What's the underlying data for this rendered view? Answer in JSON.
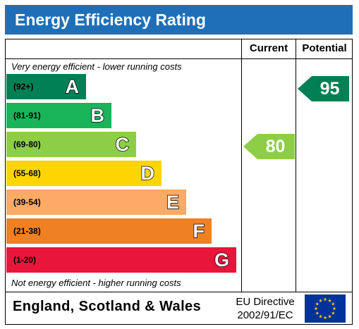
{
  "header": {
    "title": "Energy Efficiency Rating"
  },
  "columns": {
    "current": "Current",
    "potential": "Potential"
  },
  "notes": {
    "top": "Very energy efficient - lower running costs",
    "bottom": "Not energy efficient - higher running costs"
  },
  "chart_data": {
    "type": "bar",
    "title": "Energy Efficiency Rating",
    "categories": [
      "A",
      "B",
      "C",
      "D",
      "E",
      "F",
      "G"
    ],
    "bands": [
      {
        "letter": "A",
        "range": "(92+)",
        "color": "#008054"
      },
      {
        "letter": "B",
        "range": "(81-91)",
        "color": "#19b459"
      },
      {
        "letter": "C",
        "range": "(69-80)",
        "color": "#8dce46"
      },
      {
        "letter": "D",
        "range": "(55-68)",
        "color": "#ffd500"
      },
      {
        "letter": "E",
        "range": "(39-54)",
        "color": "#fcaa65"
      },
      {
        "letter": "F",
        "range": "(21-38)",
        "color": "#ef8023"
      },
      {
        "letter": "G",
        "range": "(1-20)",
        "color": "#e9153b"
      }
    ],
    "series": [
      {
        "name": "Current",
        "value": 80,
        "band": "C",
        "color": "#8dce46"
      },
      {
        "name": "Potential",
        "value": 95,
        "band": "A",
        "color": "#008054"
      }
    ]
  },
  "footer": {
    "country": "England, Scotland & Wales",
    "directive_line1": "EU Directive",
    "directive_line2": "2002/91/EC",
    "flag_color": "#003399",
    "star_color": "#ffcc00"
  }
}
